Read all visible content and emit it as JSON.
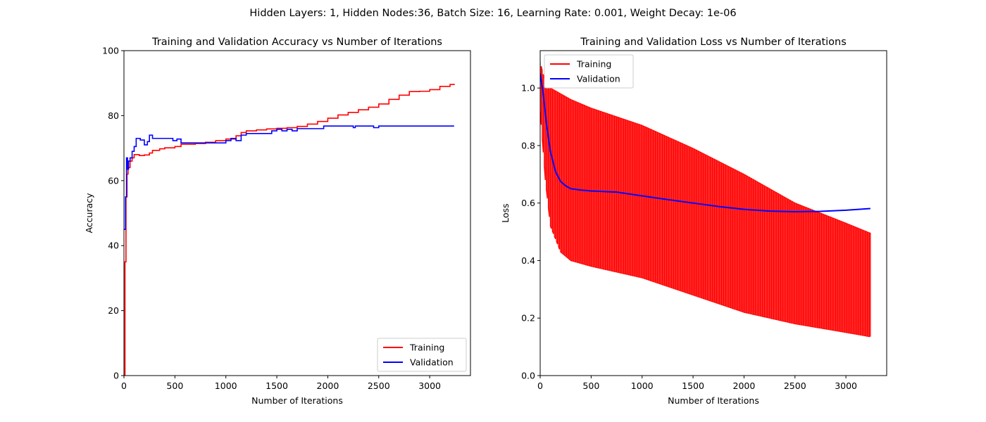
{
  "suptitle": "Hidden Layers: 1, Hidden Nodes:36, Batch Size: 16, Learning Rate: 0.001, Weight Decay: 1e-06",
  "chart_data": [
    {
      "type": "line",
      "title": "Training and Validation Accuracy vs Number of Iterations",
      "xlabel": "Number of Iterations",
      "ylabel": "Accuracy",
      "xlim": [
        0,
        3400
      ],
      "ylim": [
        0,
        100
      ],
      "xticks": [
        0,
        500,
        1000,
        1500,
        2000,
        2500,
        3000
      ],
      "yticks": [
        0,
        20,
        40,
        60,
        80,
        100
      ],
      "legend_position": "lower right",
      "series": [
        {
          "name": "Training",
          "color": "#ff0000",
          "style": "step",
          "points": [
            [
              0,
              0
            ],
            [
              10,
              35
            ],
            [
              20,
              55
            ],
            [
              30,
              62
            ],
            [
              40,
              64
            ],
            [
              60,
              66
            ],
            [
              80,
              67
            ],
            [
              100,
              68
            ],
            [
              150,
              67.7
            ],
            [
              200,
              67.9
            ],
            [
              250,
              68.5
            ],
            [
              280,
              69.3
            ],
            [
              350,
              69.8
            ],
            [
              400,
              70.1
            ],
            [
              500,
              70.5
            ],
            [
              560,
              71.2
            ],
            [
              700,
              71.4
            ],
            [
              800,
              71.8
            ],
            [
              900,
              72.3
            ],
            [
              1000,
              72.8
            ],
            [
              1100,
              73.8
            ],
            [
              1150,
              74.8
            ],
            [
              1200,
              75.3
            ],
            [
              1300,
              75.6
            ],
            [
              1400,
              75.9
            ],
            [
              1500,
              76.1
            ],
            [
              1600,
              76.3
            ],
            [
              1700,
              76.7
            ],
            [
              1800,
              77.4
            ],
            [
              1900,
              78.2
            ],
            [
              2000,
              79.2
            ],
            [
              2100,
              80.2
            ],
            [
              2200,
              81.0
            ],
            [
              2300,
              81.8
            ],
            [
              2400,
              82.6
            ],
            [
              2500,
              83.6
            ],
            [
              2600,
              85.0
            ],
            [
              2700,
              86.3
            ],
            [
              2800,
              87.4
            ],
            [
              2900,
              87.5
            ],
            [
              3000,
              88.0
            ],
            [
              3100,
              89.0
            ],
            [
              3200,
              89.6
            ],
            [
              3240,
              89.8
            ]
          ]
        },
        {
          "name": "Validation",
          "color": "#0000ff",
          "style": "step",
          "points": [
            [
              0,
              45
            ],
            [
              15,
              55
            ],
            [
              25,
              67
            ],
            [
              35,
              63.5
            ],
            [
              45,
              66
            ],
            [
              60,
              67
            ],
            [
              80,
              69
            ],
            [
              100,
              70.5
            ],
            [
              120,
              73
            ],
            [
              160,
              72.5
            ],
            [
              200,
              71
            ],
            [
              230,
              72
            ],
            [
              250,
              74
            ],
            [
              280,
              73
            ],
            [
              480,
              72.3
            ],
            [
              520,
              72.8
            ],
            [
              560,
              71.6
            ],
            [
              1000,
              72.3
            ],
            [
              1050,
              73
            ],
            [
              1100,
              72.3
            ],
            [
              1150,
              74
            ],
            [
              1200,
              74.5
            ],
            [
              1250,
              74.5
            ],
            [
              1450,
              75.3
            ],
            [
              1500,
              75.8
            ],
            [
              1550,
              75.3
            ],
            [
              1600,
              75.8
            ],
            [
              1650,
              75.3
            ],
            [
              1700,
              76
            ],
            [
              1960,
              76.8
            ],
            [
              2000,
              76.8
            ],
            [
              2250,
              76.3
            ],
            [
              2270,
              76.8
            ],
            [
              2450,
              76.3
            ],
            [
              2500,
              76.8
            ],
            [
              3240,
              76.8
            ]
          ]
        }
      ]
    },
    {
      "type": "line",
      "title": "Training and Validation Loss vs Number of Iterations",
      "xlabel": "Number of Iterations",
      "ylabel": "Loss",
      "xlim": [
        0,
        3400
      ],
      "ylim": [
        0,
        1.13
      ],
      "xticks": [
        0,
        500,
        1000,
        1500,
        2000,
        2500,
        3000
      ],
      "yticks": [
        0.0,
        0.2,
        0.4,
        0.6,
        0.8,
        1.0
      ],
      "legend_position": "upper left",
      "series": [
        {
          "name": "Training",
          "color": "#ff0000",
          "style": "oscillating-band",
          "upper": [
            [
              0,
              1.09
            ],
            [
              50,
              1.02
            ],
            [
              100,
              1.0
            ],
            [
              300,
              0.96
            ],
            [
              500,
              0.93
            ],
            [
              1000,
              0.87
            ],
            [
              1500,
              0.79
            ],
            [
              2000,
              0.7
            ],
            [
              2500,
              0.6
            ],
            [
              3000,
              0.53
            ],
            [
              3240,
              0.495
            ]
          ],
          "lower": [
            [
              0,
              0.92
            ],
            [
              50,
              0.68
            ],
            [
              100,
              0.52
            ],
            [
              200,
              0.43
            ],
            [
              300,
              0.4
            ],
            [
              500,
              0.38
            ],
            [
              1000,
              0.34
            ],
            [
              1500,
              0.28
            ],
            [
              2000,
              0.22
            ],
            [
              2500,
              0.18
            ],
            [
              3000,
              0.15
            ],
            [
              3240,
              0.135
            ]
          ]
        },
        {
          "name": "Validation",
          "color": "#0000ff",
          "style": "line",
          "points": [
            [
              0,
              1.05
            ],
            [
              30,
              0.98
            ],
            [
              60,
              0.88
            ],
            [
              100,
              0.78
            ],
            [
              150,
              0.71
            ],
            [
              200,
              0.675
            ],
            [
              250,
              0.66
            ],
            [
              300,
              0.65
            ],
            [
              400,
              0.645
            ],
            [
              500,
              0.642
            ],
            [
              750,
              0.638
            ],
            [
              1000,
              0.625
            ],
            [
              1250,
              0.612
            ],
            [
              1500,
              0.6
            ],
            [
              1750,
              0.588
            ],
            [
              2000,
              0.578
            ],
            [
              2250,
              0.572
            ],
            [
              2500,
              0.57
            ],
            [
              2750,
              0.571
            ],
            [
              3000,
              0.575
            ],
            [
              3240,
              0.581
            ]
          ]
        }
      ]
    }
  ]
}
